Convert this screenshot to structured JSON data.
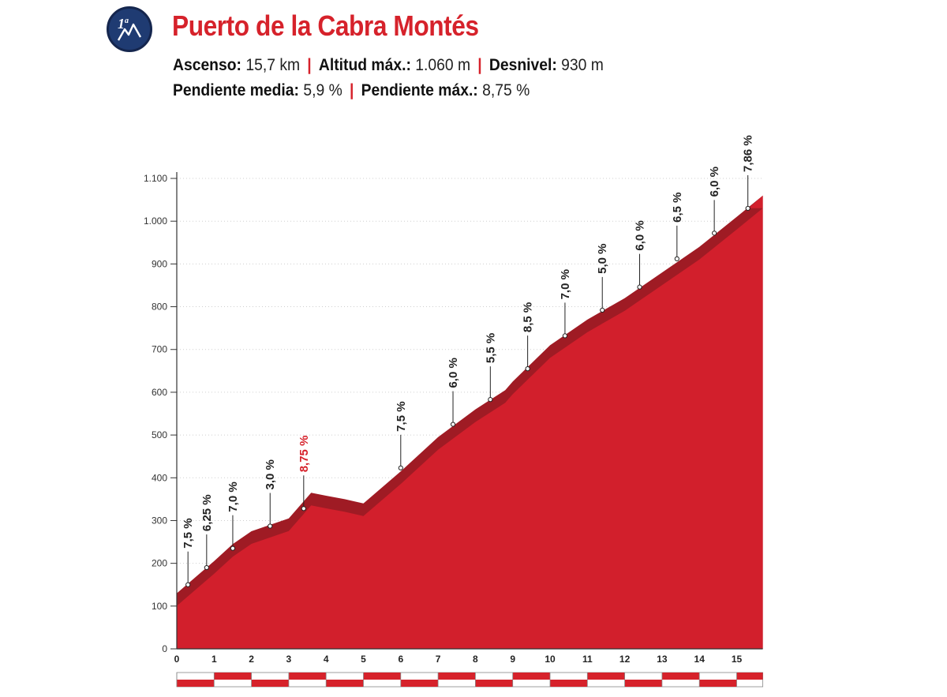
{
  "header": {
    "category_badge": {
      "text": "1",
      "superscript": "a",
      "icon": "mountain-icon",
      "color": "#1f3b72"
    },
    "title": "Puerto de la Cabra Montés",
    "stats": [
      {
        "label": "Ascenso:",
        "value": "15,7 km"
      },
      {
        "label": "Altitud máx.:",
        "value": "1.060 m"
      },
      {
        "label": "Desnivel:",
        "value": "930 m"
      },
      {
        "label": "Pendiente media:",
        "value": "5,9 %"
      },
      {
        "label": "Pendiente máx.:",
        "value": "8,75 %"
      }
    ]
  },
  "colors": {
    "accent": "#d6222b",
    "profile_fill": "#d21f2c",
    "profile_shadow": "#9f1b24",
    "text": "#222222"
  },
  "chart_data": {
    "type": "area",
    "title": "Puerto de la Cabra Montés",
    "xlabel": "",
    "ylabel": "",
    "xlim": [
      0,
      15.7
    ],
    "ylim": [
      0,
      1100
    ],
    "x_ticks": [
      0,
      1,
      2,
      3,
      4,
      5,
      6,
      7,
      8,
      9,
      10,
      11,
      12,
      13,
      14,
      15
    ],
    "y_ticks": [
      0,
      100,
      200,
      300,
      400,
      500,
      600,
      700,
      800,
      900,
      1000,
      1100
    ],
    "y_tick_labels": [
      "0",
      "100",
      "200",
      "300",
      "400",
      "500",
      "600",
      "700",
      "800",
      "900",
      "1.000",
      "1.100"
    ],
    "grid": "horizontal",
    "profile": {
      "x": [
        0,
        1,
        1.5,
        2,
        2.5,
        3,
        3.3,
        3.6,
        4,
        4.5,
        5,
        6,
        7,
        8,
        8.8,
        9,
        10,
        11,
        12,
        13,
        14,
        15,
        15.7
      ],
      "y": [
        130,
        205,
        245,
        275,
        290,
        305,
        335,
        365,
        358,
        350,
        340,
        415,
        495,
        560,
        605,
        625,
        710,
        770,
        820,
        880,
        940,
        1010,
        1060
      ]
    },
    "gradients": [
      {
        "x": 0.3,
        "y": 150,
        "label": "7,5 %"
      },
      {
        "x": 0.8,
        "y": 190,
        "label": "6,25 %"
      },
      {
        "x": 1.5,
        "y": 235,
        "label": "7,0 %"
      },
      {
        "x": 2.5,
        "y": 287,
        "label": "3,0 %"
      },
      {
        "x": 3.4,
        "y": 328,
        "label": "8,75 %",
        "max": true
      },
      {
        "x": 6.0,
        "y": 423,
        "label": "7,5 %"
      },
      {
        "x": 7.4,
        "y": 525,
        "label": "6,0 %"
      },
      {
        "x": 8.4,
        "y": 583,
        "label": "5,5 %"
      },
      {
        "x": 9.4,
        "y": 655,
        "label": "8,5 %"
      },
      {
        "x": 10.4,
        "y": 732,
        "label": "7,0 %"
      },
      {
        "x": 11.4,
        "y": 792,
        "label": "5,0 %"
      },
      {
        "x": 12.4,
        "y": 846,
        "label": "6,0 %"
      },
      {
        "x": 13.4,
        "y": 912,
        "label": "6,5 %"
      },
      {
        "x": 14.4,
        "y": 972,
        "label": "6,0 %"
      },
      {
        "x": 15.3,
        "y": 1030,
        "label": "7,86 %"
      }
    ]
  }
}
